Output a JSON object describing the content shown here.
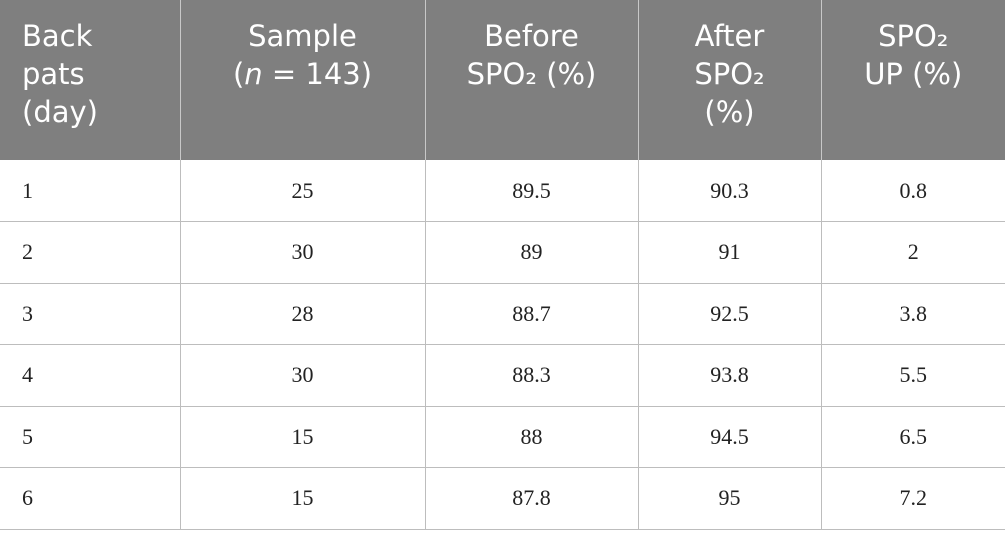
{
  "table": {
    "header": [
      [
        "Back",
        "pats",
        "(day)"
      ],
      [
        "Sample",
        [
          "(",
          "n",
          " = 143)"
        ]
      ],
      [
        "Before",
        "SPO₂ (%)"
      ],
      [
        "After",
        "SPO₂",
        "(%)"
      ],
      [
        "SPO₂",
        "UP (%)"
      ]
    ],
    "rows": [
      [
        1,
        25,
        89.5,
        90.3,
        0.8
      ],
      [
        2,
        30,
        89,
        91,
        2
      ],
      [
        3,
        28,
        88.7,
        92.5,
        3.8
      ],
      [
        4,
        30,
        88.3,
        93.8,
        5.5
      ],
      [
        5,
        15,
        88,
        94.5,
        6.5
      ],
      [
        6,
        15,
        87.8,
        95,
        7.2
      ]
    ]
  }
}
